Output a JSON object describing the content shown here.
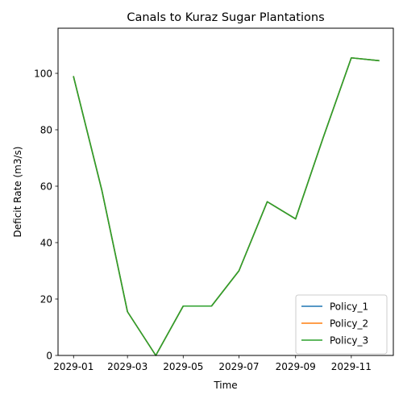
{
  "chart_data": {
    "type": "line",
    "title": "Canals to Kuraz Sugar Plantations",
    "xlabel": "Time",
    "ylabel": "Deficit Rate (m3/s)",
    "x": [
      "2029-01-01",
      "2029-02-01",
      "2029-03-01",
      "2029-04-01",
      "2029-05-01",
      "2029-06-01",
      "2029-07-01",
      "2029-08-01",
      "2029-09-01",
      "2029-10-01",
      "2029-11-01",
      "2029-12-01"
    ],
    "xlim": [
      "2028-12-15",
      "2029-12-17"
    ],
    "ylim": [
      0,
      116
    ],
    "x_ticks": [
      "2029-01",
      "2029-03",
      "2029-05",
      "2029-07",
      "2029-09",
      "2029-11"
    ],
    "y_ticks": [
      0,
      20,
      40,
      60,
      80,
      100
    ],
    "grid": false,
    "legend_position": "lower-right",
    "series": [
      {
        "name": "Policy_1",
        "color": "#1f77b4",
        "values": [
          98.8,
          58.5,
          15.5,
          0.0,
          17.5,
          17.5,
          30.0,
          54.5,
          48.4,
          77.0,
          105.5,
          104.5
        ]
      },
      {
        "name": " Policy_2",
        "color": "#ff7f0e",
        "values": [
          98.8,
          58.5,
          15.5,
          0.0,
          17.5,
          17.5,
          30.0,
          54.5,
          48.4,
          77.0,
          105.5,
          104.5
        ]
      },
      {
        "name": " Policy_3",
        "color": "#2ca02c",
        "values": [
          98.8,
          58.5,
          15.5,
          0.0,
          17.5,
          17.5,
          30.0,
          54.5,
          48.4,
          77.0,
          105.5,
          104.5
        ]
      }
    ]
  }
}
